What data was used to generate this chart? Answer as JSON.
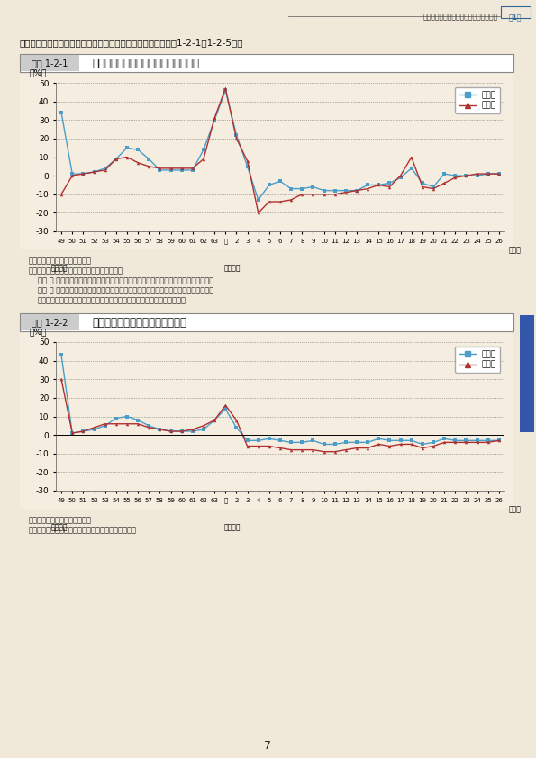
{
  "page_bg": "#f0e8d8",
  "chart_bg": "#f5ede0",
  "header_text1": "平成二十年度の地価・土地問題等の動向",
  "header_link": "第1章",
  "intro_text": "て相対的に地価の下落率が拡大している地点も存在する（図表1-2-1〜1-2-5）。",
  "fig1_label": "図表 1-2-1",
  "fig1_title": "三大都市圏における地価変動率の推移",
  "fig1_note1": "資料：国土交通省「地価公示」",
  "fig1_note2": "注：三大都市圏：東京圏、大阪圏、名古屋圏。",
  "fig1_note3": "　東 京 圏：首都圏整備法による既成市街地及び近郊整備地帯を含む市区町村の区域。",
  "fig1_note4": "　大 阪 圏：近畿圏整備法による既成都市区域及び近郊整備区域を含む市町村の区域。",
  "fig1_note5": "　名古屋圏：中部圏開発整備法による都市整備区域を含む市町村の区域。",
  "fig2_label": "図表 1-2-2",
  "fig2_title": "地方圏における地価変動率の推移",
  "fig2_note1": "資料：国土交通省「地価公示」",
  "fig2_note2": "注：「地方圏」とは、三大都市圏を除く地域を指す。",
  "x_labels": [
    "49",
    "50",
    "51",
    "52",
    "53",
    "54",
    "55",
    "56",
    "57",
    "58",
    "59",
    "60",
    "61",
    "62",
    "63",
    "元",
    "2",
    "3",
    "4",
    "5",
    "6",
    "7",
    "8",
    "9",
    "10",
    "11",
    "12",
    "13",
    "14",
    "15",
    "16",
    "17",
    "18",
    "19",
    "20",
    "21",
    "22",
    "23",
    "24",
    "25",
    "26"
  ],
  "color_residential": "#4a9ec9",
  "color_commercial": "#b03030",
  "legend_residential": "住宅地",
  "legend_commercial": "商業地",
  "fig1_residential": [
    34,
    1,
    1,
    2,
    4,
    9,
    15,
    14,
    9,
    3,
    3,
    3,
    3,
    14,
    30,
    46,
    22,
    5,
    -13,
    -5,
    -3,
    -7,
    -7,
    -6,
    -8,
    -8,
    -8,
    -8,
    -5,
    -5,
    -4,
    -1,
    4,
    -4,
    -6,
    1,
    0,
    0,
    0,
    1,
    1
  ],
  "fig1_commercial": [
    -10,
    0,
    1,
    2,
    3,
    9,
    10,
    7,
    5,
    4,
    4,
    4,
    4,
    9,
    31,
    47,
    20,
    8,
    -20,
    -14,
    -14,
    -13,
    -10,
    -10,
    -10,
    -10,
    -9,
    -8,
    -7,
    -5,
    -6,
    0,
    10,
    -6,
    -7,
    -4,
    -1,
    0,
    1,
    1,
    1
  ],
  "fig2_residential": [
    43,
    1,
    2,
    3,
    5,
    9,
    10,
    8,
    5,
    3,
    2,
    2,
    2,
    3,
    8,
    14,
    4,
    -3,
    -3,
    -2,
    -3,
    -4,
    -4,
    -3,
    -5,
    -5,
    -4,
    -4,
    -4,
    -2,
    -3,
    -3,
    -3,
    -5,
    -4,
    -2,
    -3,
    -3,
    -3,
    -3,
    -3
  ],
  "fig2_commercial": [
    30,
    1,
    2,
    4,
    6,
    6,
    6,
    6,
    4,
    3,
    2,
    2,
    3,
    5,
    8,
    16,
    8,
    -6,
    -6,
    -6,
    -7,
    -8,
    -8,
    -8,
    -9,
    -9,
    -8,
    -7,
    -7,
    -5,
    -6,
    -5,
    -5,
    -7,
    -6,
    -4,
    -4,
    -4,
    -4,
    -4,
    -3
  ],
  "yticks": [
    -30,
    -20,
    -10,
    0,
    10,
    20,
    30,
    40,
    50
  ],
  "ylim": [
    -30,
    50
  ]
}
